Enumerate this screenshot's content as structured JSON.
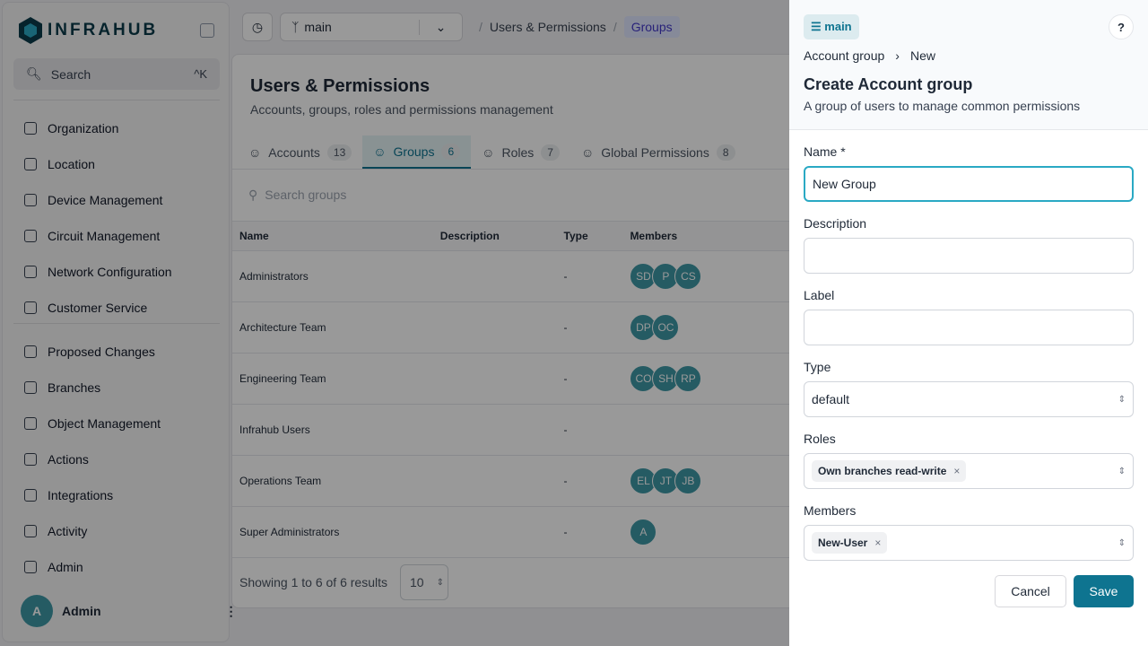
{
  "sidebar": {
    "logo": "INFRAHUB",
    "search": "Search",
    "shortcut": "^K",
    "items": [
      "Organization",
      "Location",
      "Device Management",
      "Circuit Management",
      "Network Configuration",
      "Customer Service"
    ],
    "items2": [
      "Proposed Changes",
      "Branches",
      "Object Management",
      "Actions",
      "Integrations",
      "Activity",
      "Admin"
    ],
    "user": {
      "initial": "A",
      "name": "Admin"
    }
  },
  "topbar": {
    "branch": "main",
    "breadcrumb": [
      "Users & Permissions",
      "Groups"
    ]
  },
  "page": {
    "title": "Users & Permissions",
    "subtitle": "Accounts, groups, roles and permissions management",
    "tabs": [
      {
        "label": "Accounts",
        "count": "13"
      },
      {
        "label": "Groups",
        "count": "6"
      },
      {
        "label": "Roles",
        "count": "7"
      },
      {
        "label": "Global Permissions",
        "count": "8"
      }
    ],
    "search_placeholder": "Search groups",
    "columns": [
      "Name",
      "Description",
      "Type",
      "Members"
    ],
    "rows": [
      {
        "name": "Administrators",
        "type": "-",
        "members": [
          "SD",
          "P",
          "CS"
        ]
      },
      {
        "name": "Architecture Team",
        "type": "-",
        "members": [
          "DP",
          "OC"
        ]
      },
      {
        "name": "Engineering Team",
        "type": "-",
        "members": [
          "CO",
          "SH",
          "RP"
        ]
      },
      {
        "name": "Infrahub Users",
        "type": "-",
        "members": []
      },
      {
        "name": "Operations Team",
        "type": "-",
        "members": [
          "EL",
          "JT",
          "JB"
        ]
      },
      {
        "name": "Super Administrators",
        "type": "-",
        "members": [
          "A"
        ]
      }
    ],
    "footer": "Showing 1 to 6 of 6 results",
    "page_size": "10"
  },
  "drawer": {
    "branch": "main",
    "help": "?",
    "breadcrumb": [
      "Account group",
      "New"
    ],
    "title": "Create Account group",
    "subtitle": "A group of users to manage common permissions",
    "fields": {
      "name_label": "Name *",
      "name_value": "New Group",
      "description_label": "Description",
      "label_label": "Label",
      "type_label": "Type",
      "type_value": "default",
      "roles_label": "Roles",
      "roles_tag": "Own branches read-write",
      "members_label": "Members",
      "members_tag": "New-User"
    },
    "cancel": "Cancel",
    "save": "Save"
  },
  "colors": {
    "accent": "#0e7490",
    "avatar": "#3f98a6"
  }
}
